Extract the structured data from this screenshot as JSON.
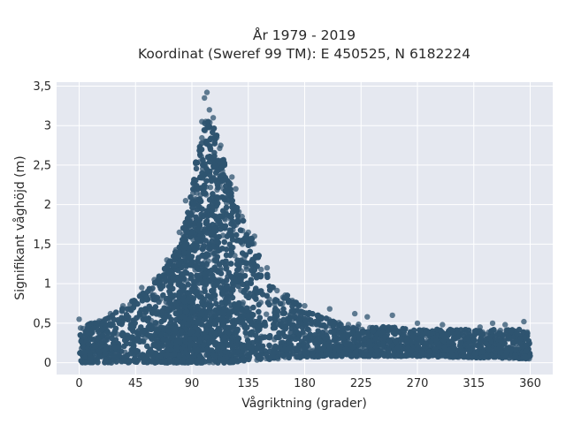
{
  "chart_data": {
    "type": "scatter",
    "title": "År 1979 - 2019",
    "subtitle": "Koordinat (Sweref 99 TM): E 450525, N 6182224",
    "xlabel": "Vågriktning (grader)",
    "ylabel": "Signifikant våghöjd (m)",
    "xlim": [
      -18,
      378
    ],
    "ylim": [
      -0.15,
      3.55
    ],
    "x_ticks": [
      0,
      45,
      90,
      135,
      180,
      225,
      270,
      315,
      360
    ],
    "x_tick_labels": [
      "0",
      "45",
      "90",
      "135",
      "180",
      "225",
      "270",
      "315",
      "360"
    ],
    "y_ticks": [
      0,
      0.5,
      1,
      1.5,
      2,
      2.5,
      3,
      3.5
    ],
    "y_tick_labels": [
      "0",
      "0,5",
      "1",
      "1,5",
      "2",
      "2,5",
      "3",
      "3,5"
    ],
    "grid": true,
    "legend": "none",
    "marker_color": "#2f5470",
    "background_color": "#e5e8f0",
    "envelope": {
      "x": [
        0,
        20,
        40,
        60,
        80,
        90,
        95,
        100,
        105,
        110,
        120,
        130,
        140,
        150,
        160,
        170,
        180,
        200,
        225,
        250,
        270,
        300,
        330,
        360
      ],
      "upper": [
        0.45,
        0.55,
        0.75,
        1.0,
        1.5,
        2.2,
        2.75,
        3.1,
        3.05,
        2.9,
        2.3,
        1.85,
        1.5,
        1.15,
        0.95,
        0.8,
        0.68,
        0.55,
        0.48,
        0.45,
        0.43,
        0.42,
        0.42,
        0.42
      ],
      "lower": [
        0.0,
        0.0,
        0.0,
        0.0,
        0.0,
        0.0,
        0.0,
        0.0,
        0.0,
        0.0,
        0.0,
        0.02,
        0.03,
        0.04,
        0.05,
        0.06,
        0.07,
        0.08,
        0.08,
        0.08,
        0.08,
        0.07,
        0.06,
        0.05
      ]
    },
    "notable_points": {
      "x": [
        102,
        100,
        104,
        98,
        107,
        113,
        122,
        125,
        130,
        135,
        140,
        150,
        155,
        165,
        180,
        200,
        220,
        230,
        250,
        270,
        290,
        320,
        330,
        340,
        355,
        0,
        10,
        25,
        35,
        50,
        60,
        70,
        80,
        85
      ],
      "y": [
        3.42,
        3.35,
        3.2,
        3.05,
        3.1,
        2.75,
        2.35,
        2.2,
        1.85,
        1.65,
        1.6,
        1.2,
        0.95,
        0.82,
        0.72,
        0.68,
        0.62,
        0.58,
        0.6,
        0.5,
        0.48,
        0.45,
        0.5,
        0.48,
        0.52,
        0.55,
        0.5,
        0.62,
        0.72,
        0.95,
        1.05,
        1.3,
        1.65,
        2.05
      ]
    }
  }
}
